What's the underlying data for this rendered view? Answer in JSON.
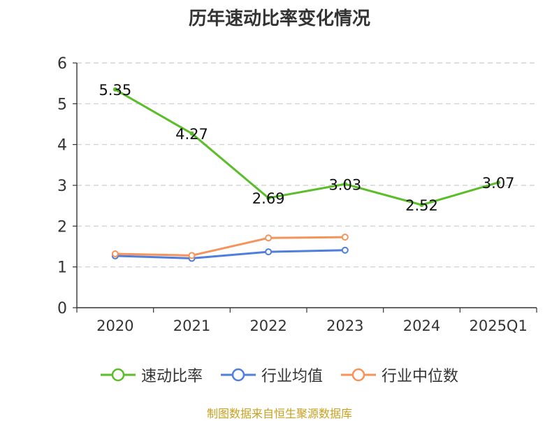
{
  "chart_data": {
    "type": "line",
    "title": "历年速动比率变化情况",
    "categories": [
      "2020",
      "2021",
      "2022",
      "2023",
      "2024",
      "2025Q1"
    ],
    "y_ticks": [
      "0",
      "1",
      "2",
      "3",
      "4",
      "5",
      "6"
    ],
    "ylim": [
      0,
      6
    ],
    "grid": true,
    "legend_position": "bottom",
    "series": [
      {
        "name": "速动比率",
        "color": "#5cbd2a",
        "values": [
          5.35,
          4.27,
          2.69,
          3.03,
          2.52,
          3.07
        ],
        "labels": [
          "5.35",
          "4.27",
          "2.69",
          "3.03",
          "2.52",
          "3.07"
        ]
      },
      {
        "name": "行业均值",
        "color": "#4f7fdb",
        "values": [
          1.27,
          1.21,
          1.37,
          1.41,
          null,
          null
        ]
      },
      {
        "name": "行业中位数",
        "color": "#f5935a",
        "values": [
          1.32,
          1.28,
          1.71,
          1.73,
          null,
          null
        ]
      }
    ]
  },
  "source": "制图数据来自恒生聚源数据库"
}
